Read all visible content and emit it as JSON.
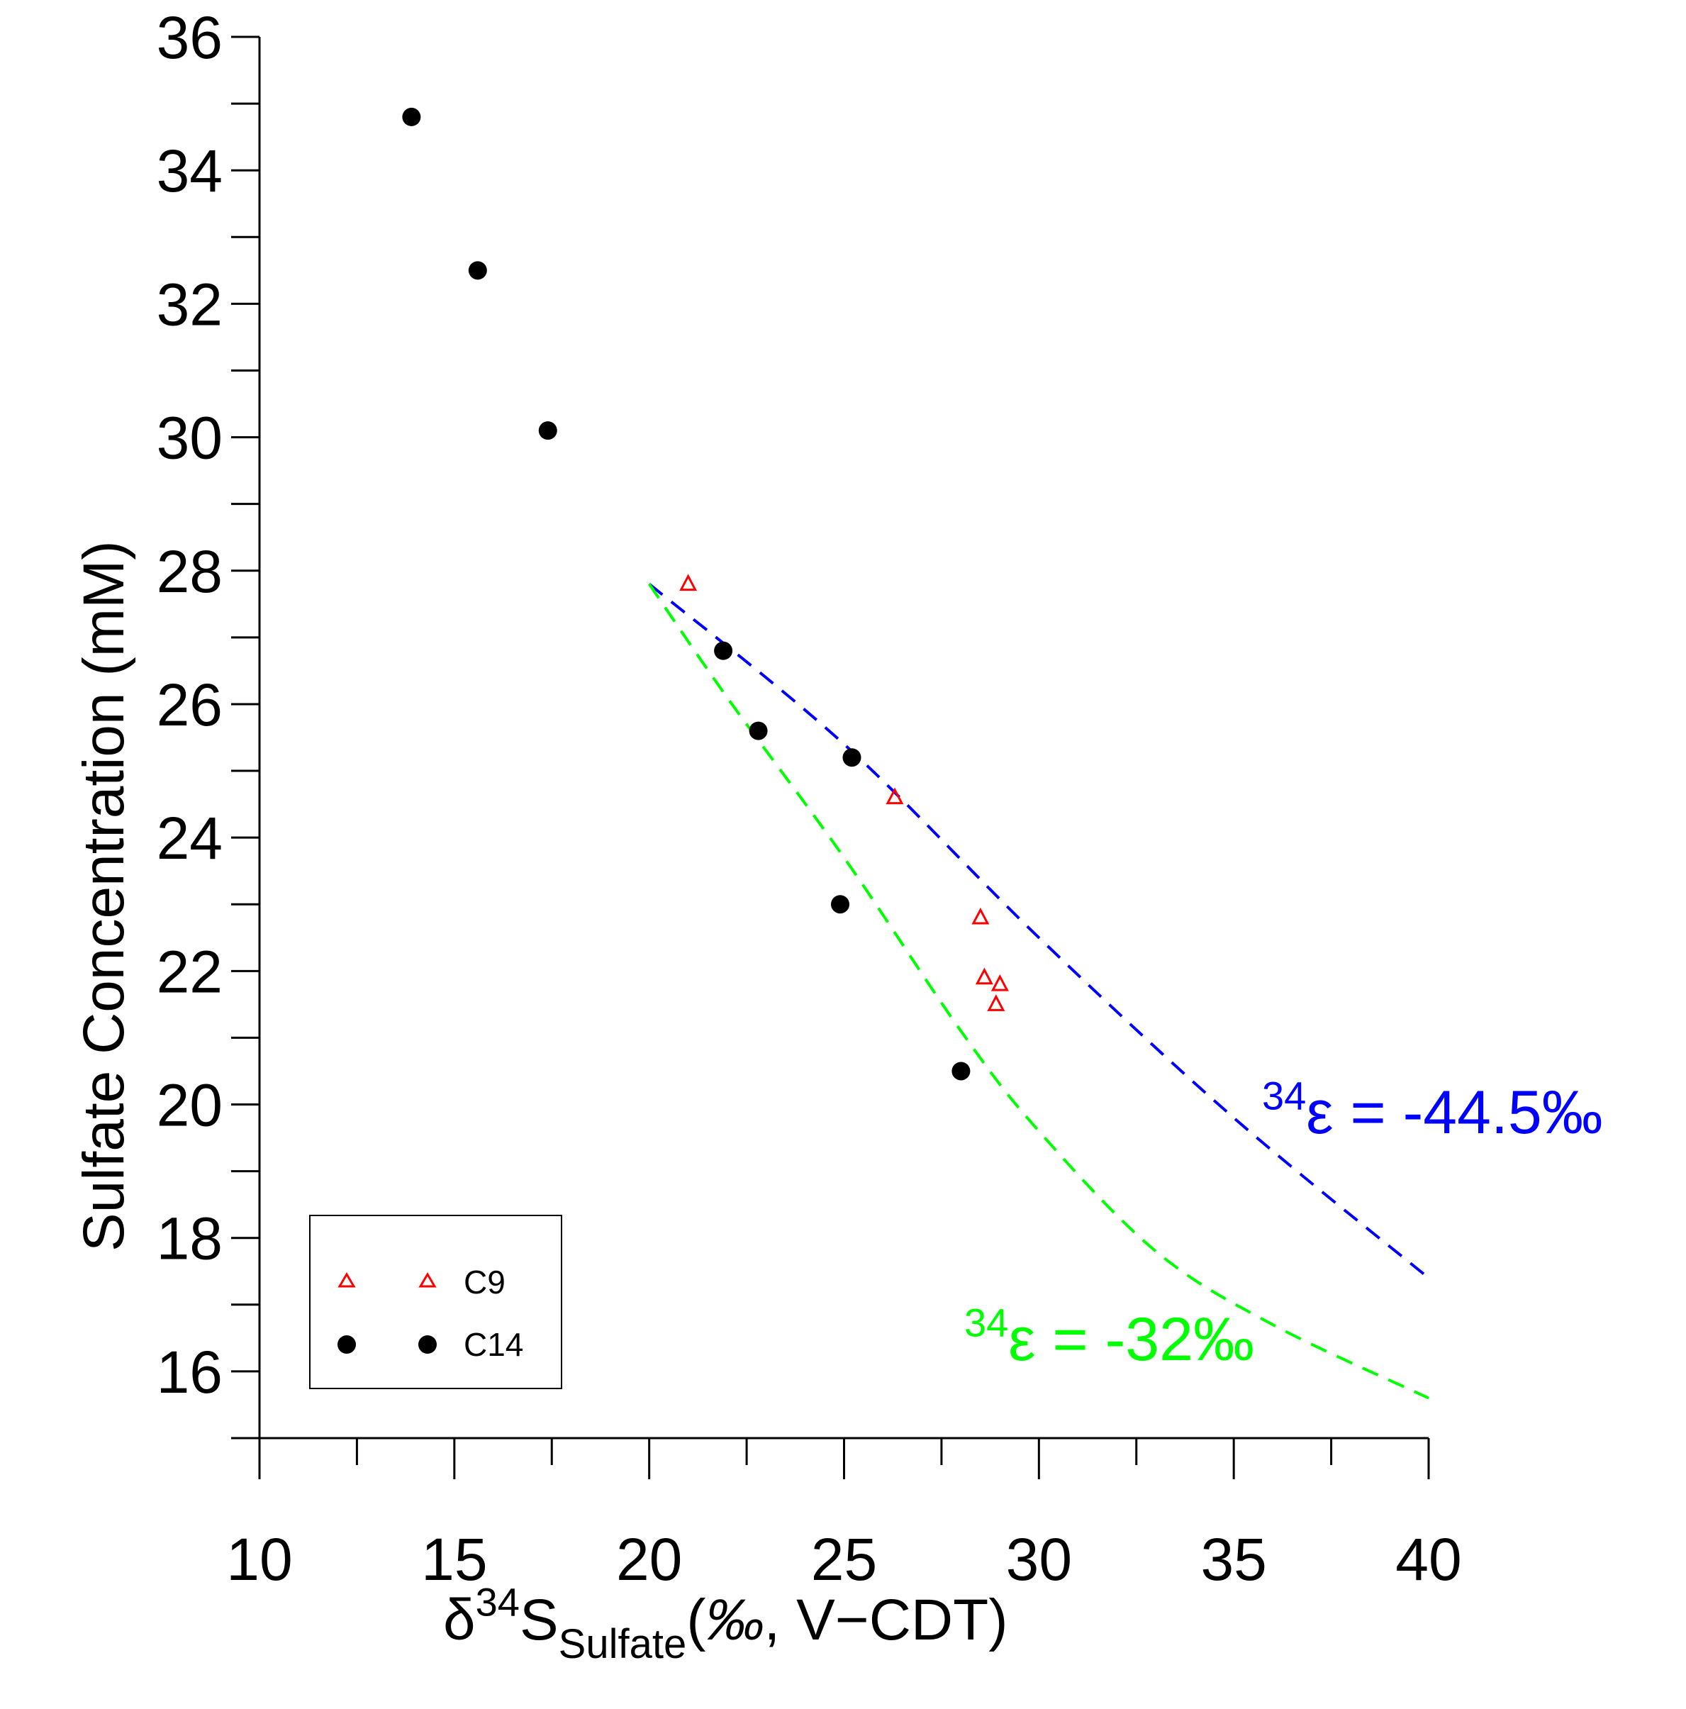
{
  "chart_data": {
    "type": "scatter",
    "xlabel": {
      "delta": "δ",
      "sup": "34",
      "main": "S",
      "sub": "Sulfate",
      "open": "(",
      "permil": "‰",
      "rest": ", V−CDT)"
    },
    "ylabel": "Sulfate Concentration (mM)",
    "xlim": [
      10,
      40
    ],
    "ylim": [
      15,
      36
    ],
    "xticks": [
      "10",
      "15",
      "20",
      "25",
      "30",
      "35",
      "40"
    ],
    "yticks": [
      "16",
      "18",
      "20",
      "22",
      "24",
      "26",
      "28",
      "30",
      "32",
      "34",
      "36"
    ],
    "grid": false,
    "legend_position": "bottom-left",
    "series": [
      {
        "name": "C9",
        "marker": "open-triangle",
        "color": "#ff0000",
        "points": [
          {
            "x": 21.0,
            "y": 27.8
          },
          {
            "x": 26.3,
            "y": 24.6
          },
          {
            "x": 28.5,
            "y": 22.8
          },
          {
            "x": 28.6,
            "y": 21.9
          },
          {
            "x": 29.0,
            "y": 21.8
          },
          {
            "x": 28.9,
            "y": 21.5
          }
        ]
      },
      {
        "name": "C14",
        "marker": "filled-circle",
        "color": "#000000",
        "points": [
          {
            "x": 13.9,
            "y": 34.8
          },
          {
            "x": 15.6,
            "y": 32.5
          },
          {
            "x": 17.4,
            "y": 30.1
          },
          {
            "x": 21.9,
            "y": 26.8
          },
          {
            "x": 22.8,
            "y": 25.6
          },
          {
            "x": 25.2,
            "y": 25.2
          },
          {
            "x": 24.9,
            "y": 23.0
          },
          {
            "x": 28.0,
            "y": 20.5
          }
        ]
      }
    ],
    "fit_lines": [
      {
        "label_sup": "34",
        "label_text": "ε = -44.5‰",
        "color": "#0000ff",
        "style": "dashed",
        "points": [
          [
            20,
            27.8
          ],
          [
            25,
            25.4
          ],
          [
            30,
            22.5
          ],
          [
            35,
            19.8
          ],
          [
            40,
            17.4
          ]
        ]
      },
      {
        "label_sup": "34",
        "label_text": "ε = -32‰",
        "color": "#00ff00",
        "style": "dashed",
        "points": [
          [
            20,
            27.8
          ],
          [
            22,
            26.1
          ],
          [
            25,
            23.7
          ],
          [
            28,
            21.1
          ],
          [
            30,
            19.6
          ],
          [
            33,
            17.8
          ],
          [
            36,
            16.7
          ],
          [
            40,
            15.6
          ]
        ]
      }
    ]
  }
}
